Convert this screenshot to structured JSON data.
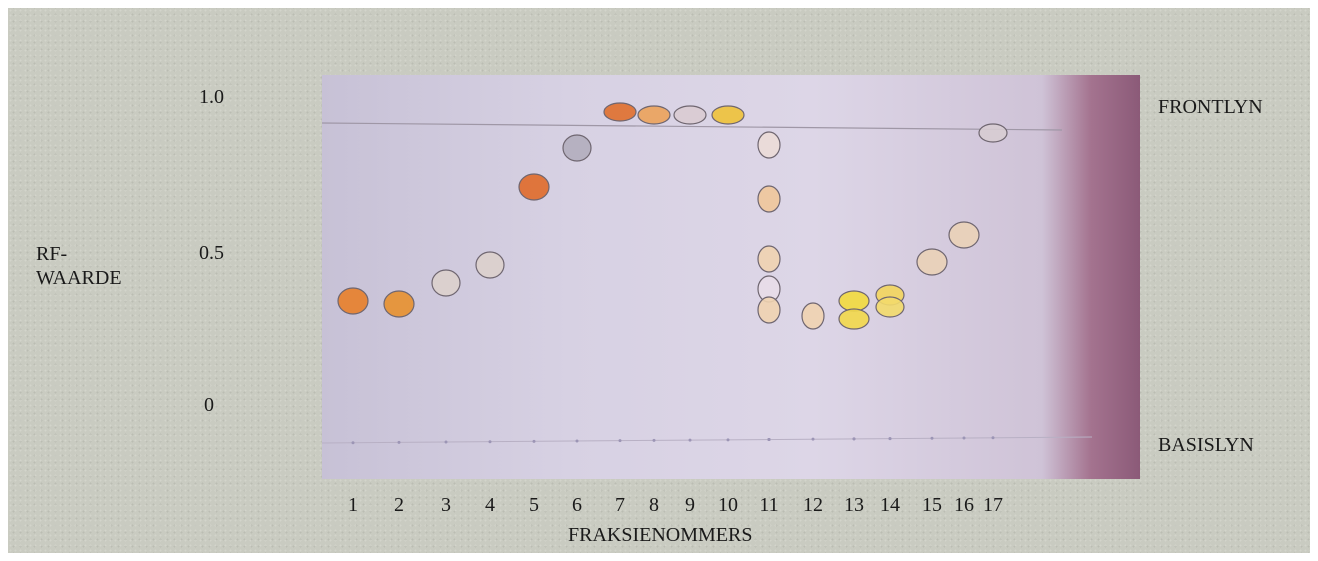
{
  "axis": {
    "ylabel_line1": "RF-",
    "ylabel_line2": "WAARDE",
    "ticks": [
      "1.0",
      "0.5",
      "0"
    ],
    "xlabel": "FRAKSIENOMMERS",
    "fraction_numbers": [
      "1",
      "2",
      "3",
      "4",
      "5",
      "6",
      "7",
      "8",
      "9",
      "10",
      "11",
      "12",
      "13",
      "14",
      "15",
      "16",
      "17"
    ]
  },
  "lines": {
    "front": "FRONTLYN",
    "base": "BASISLYN"
  },
  "spots": [
    {
      "fraction": 1,
      "rf": 0.33,
      "color": "#e8802a"
    },
    {
      "fraction": 2,
      "rf": 0.32,
      "color": "#e8902e"
    },
    {
      "fraction": 3,
      "rf": 0.39,
      "color": "#dcd0cc"
    },
    {
      "fraction": 4,
      "rf": 0.45,
      "color": "#dcd0cc"
    },
    {
      "fraction": 5,
      "rf": 0.71,
      "color": "#e06a2a"
    },
    {
      "fraction": 6,
      "rf": 0.84,
      "color": "#b3adbd"
    },
    {
      "fraction": 7,
      "rf": 0.96,
      "color": "#e06f2c"
    },
    {
      "fraction": 8,
      "rf": 0.95,
      "color": "#eba25a"
    },
    {
      "fraction": 9,
      "rf": 0.95,
      "color": "#d9cbd1"
    },
    {
      "fraction": 10,
      "rf": 0.95,
      "color": "#eec238"
    },
    {
      "fraction": 11,
      "rf": 0.85,
      "color": "#ebdcd7"
    },
    {
      "fraction": 11,
      "rf": 0.67,
      "color": "#efc79a"
    },
    {
      "fraction": 11,
      "rf": 0.47,
      "color": "#efd3b0"
    },
    {
      "fraction": 11,
      "rf": 0.37,
      "color": "#e8dde8"
    },
    {
      "fraction": 11,
      "rf": 0.3,
      "color": "#efd3b0"
    },
    {
      "fraction": 12,
      "rf": 0.28,
      "color": "#efd3b0"
    },
    {
      "fraction": 13,
      "rf": 0.33,
      "color": "#f2da3d"
    },
    {
      "fraction": 13,
      "rf": 0.27,
      "color": "#f2d84a"
    },
    {
      "fraction": 14,
      "rf": 0.35,
      "color": "#f3d55d"
    },
    {
      "fraction": 14,
      "rf": 0.31,
      "color": "#f3da6c"
    },
    {
      "fraction": 15,
      "rf": 0.46,
      "color": "#ead2b7"
    },
    {
      "fraction": 16,
      "rf": 0.55,
      "color": "#ead2b7"
    },
    {
      "fraction": 17,
      "rf": 0.89,
      "color": "#d7ccd2"
    }
  ]
}
